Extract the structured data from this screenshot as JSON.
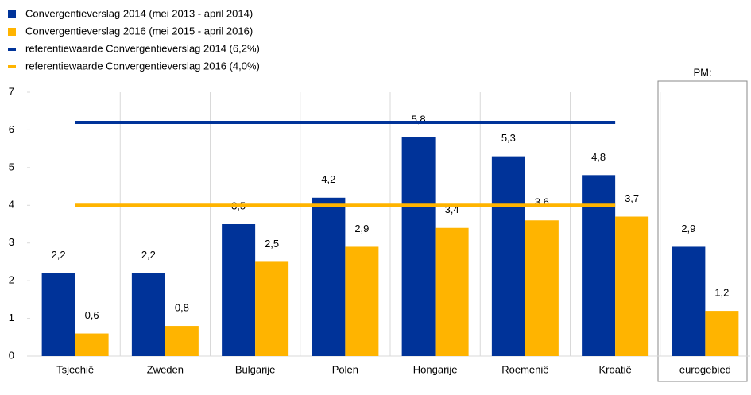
{
  "chart_data": {
    "type": "bar",
    "annotation": "PM:",
    "categories": [
      "Tsjechië",
      "Zweden",
      "Bulgarije",
      "Polen",
      "Hongarije",
      "Roemenië",
      "Kroatië",
      "eurogebied"
    ],
    "series": [
      {
        "name": "Convergentieverslag 2014 (mei 2013 - april 2014)",
        "color": "#003399",
        "values": [
          2.2,
          2.2,
          3.5,
          4.2,
          5.8,
          5.3,
          4.8,
          2.9
        ],
        "value_labels": [
          "2,2",
          "2,2",
          "3,5",
          "4,2",
          "5,8",
          "5,3",
          "4,8",
          "2,9"
        ]
      },
      {
        "name": "Convergentieverslag 2016 (mei 2015 - april 2016)",
        "color": "#ffb400",
        "values": [
          0.6,
          0.8,
          2.5,
          2.9,
          3.4,
          3.6,
          3.7,
          1.2
        ],
        "value_labels": [
          "0,6",
          "0,8",
          "2,5",
          "2,9",
          "3,4",
          "3,6",
          "3,7",
          "1,2"
        ]
      }
    ],
    "reference_lines": [
      {
        "name": "referentiewaarde Convergentieverslag 2014 (6,2%)",
        "color": "#003399",
        "value": 6.2
      },
      {
        "name": "referentiewaarde Convergentieverslag 2016 (4,0%)",
        "color": "#ffb400",
        "value": 4.0
      }
    ],
    "ylim": [
      0,
      7
    ],
    "yticks": [
      0,
      1,
      2,
      3,
      4,
      5,
      6,
      7
    ]
  }
}
